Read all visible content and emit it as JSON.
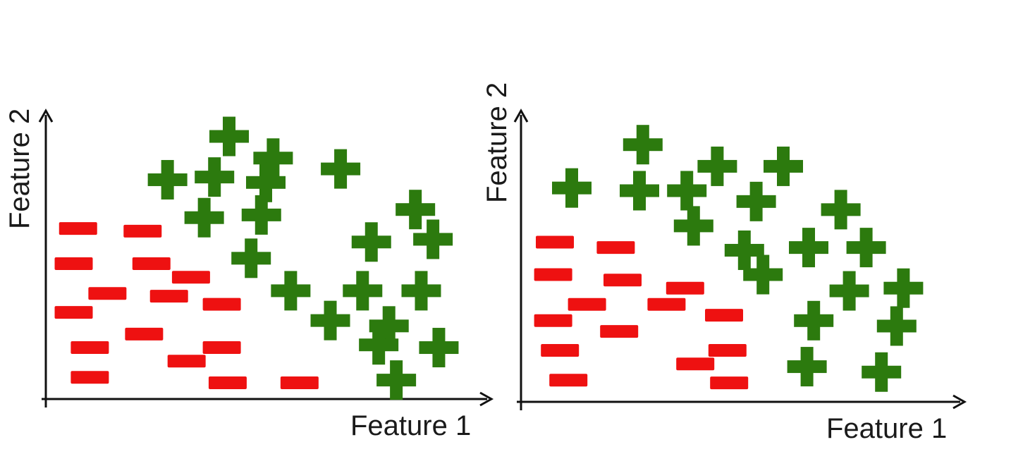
{
  "colors": {
    "positive": "#2c7a0e",
    "negative": "#ee1111",
    "axis": "#111111"
  },
  "panels": [
    {
      "xlabel": "Feature 1",
      "ylabel": "Feature 2",
      "positive": [
        [
          12.5,
          9.7
        ],
        [
          15.5,
          8.9
        ],
        [
          20.1,
          8.5
        ],
        [
          8.3,
          8.1
        ],
        [
          11.5,
          8.2
        ],
        [
          15.0,
          8.0
        ],
        [
          25.2,
          7.0
        ],
        [
          10.8,
          6.7
        ],
        [
          14.7,
          6.8
        ],
        [
          22.2,
          5.8
        ],
        [
          26.4,
          5.9
        ],
        [
          14.0,
          5.2
        ],
        [
          16.7,
          4.0
        ],
        [
          21.6,
          4.0
        ],
        [
          25.6,
          4.0
        ],
        [
          19.4,
          2.9
        ],
        [
          23.4,
          2.7
        ],
        [
          22.7,
          2.0
        ],
        [
          26.8,
          1.9
        ],
        [
          23.9,
          0.7
        ]
      ],
      "negative": [
        [
          2.2,
          6.3
        ],
        [
          6.6,
          6.2
        ],
        [
          1.9,
          5.0
        ],
        [
          7.2,
          5.0
        ],
        [
          4.2,
          3.9
        ],
        [
          8.4,
          3.8
        ],
        [
          9.9,
          4.5
        ],
        [
          1.9,
          3.2
        ],
        [
          12.0,
          3.5
        ],
        [
          6.7,
          2.4
        ],
        [
          3.0,
          1.9
        ],
        [
          12.0,
          1.9
        ],
        [
          9.6,
          1.4
        ],
        [
          3.0,
          0.8
        ],
        [
          12.4,
          0.6
        ],
        [
          17.3,
          0.6
        ]
      ]
    },
    {
      "xlabel": "Feature 1",
      "ylabel": "Feature 2",
      "positive": [
        [
          7.2,
          9.5
        ],
        [
          11.6,
          8.7
        ],
        [
          15.5,
          8.7
        ],
        [
          3.0,
          7.9
        ],
        [
          7.0,
          7.8
        ],
        [
          9.8,
          7.8
        ],
        [
          13.9,
          7.4
        ],
        [
          18.9,
          7.1
        ],
        [
          10.2,
          6.5
        ],
        [
          13.2,
          5.6
        ],
        [
          17.0,
          5.7
        ],
        [
          20.4,
          5.7
        ],
        [
          14.3,
          4.7
        ],
        [
          19.4,
          4.1
        ],
        [
          22.6,
          4.2
        ],
        [
          17.3,
          3.0
        ],
        [
          22.2,
          2.8
        ],
        [
          16.9,
          1.3
        ],
        [
          21.3,
          1.1
        ]
      ],
      "negative": [
        [
          2.0,
          5.9
        ],
        [
          5.6,
          5.7
        ],
        [
          1.9,
          4.7
        ],
        [
          6.0,
          4.5
        ],
        [
          9.7,
          4.2
        ],
        [
          3.9,
          3.6
        ],
        [
          8.6,
          3.6
        ],
        [
          1.9,
          3.0
        ],
        [
          12.0,
          3.2
        ],
        [
          5.8,
          2.6
        ],
        [
          2.3,
          1.9
        ],
        [
          12.2,
          1.9
        ],
        [
          10.3,
          1.4
        ],
        [
          2.8,
          0.8
        ],
        [
          12.3,
          0.7
        ]
      ]
    }
  ]
}
